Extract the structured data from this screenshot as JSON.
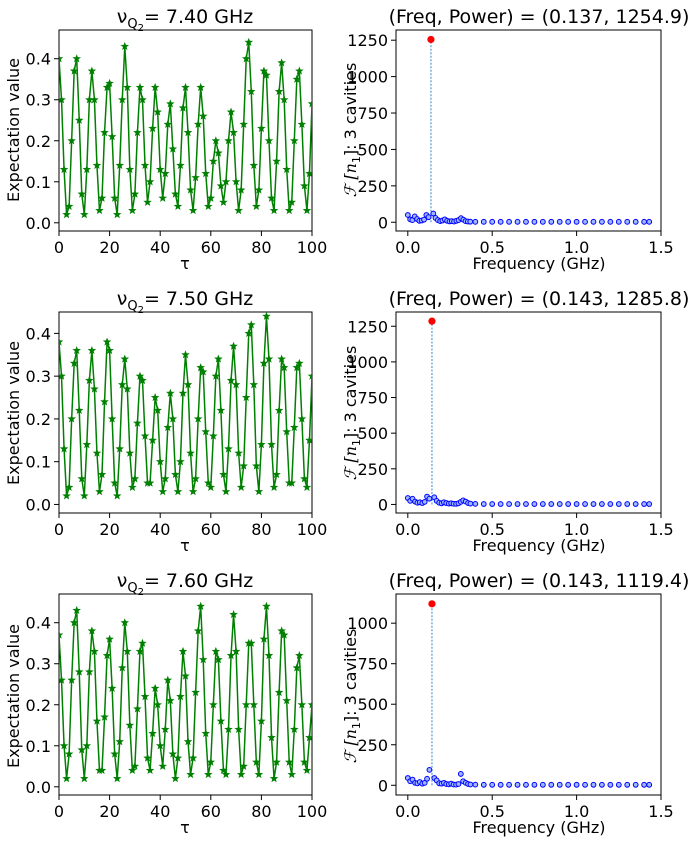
{
  "chart_data": [
    {
      "type": "line",
      "title_prefix": "ν",
      "title_sub": "Q",
      "title_subsub": "2",
      "title_value": "= 7.40 GHz",
      "xlabel": "τ",
      "ylabel": "Expectation value",
      "xlim": [
        0,
        100
      ],
      "ylim": [
        -0.02,
        0.47
      ],
      "xticks": [
        "0",
        "20",
        "40",
        "60",
        "80",
        "100"
      ],
      "yticks": [
        "0.0",
        "0.1",
        "0.2",
        "0.3",
        "0.4"
      ],
      "color": "#008000",
      "marker": "star",
      "x": [
        0,
        1,
        2,
        3,
        4,
        5,
        6,
        7,
        8,
        9,
        10,
        11,
        12,
        13,
        14,
        15,
        16,
        17,
        18,
        19,
        20,
        21,
        22,
        23,
        24,
        25,
        26,
        27,
        28,
        29,
        30,
        31,
        32,
        33,
        34,
        35,
        36,
        37,
        38,
        39,
        40,
        41,
        42,
        43,
        44,
        45,
        46,
        47,
        48,
        49,
        50,
        51,
        52,
        53,
        54,
        55,
        56,
        57,
        58,
        59,
        60,
        61,
        62,
        63,
        64,
        65,
        66,
        67,
        68,
        69,
        70,
        71,
        72,
        73,
        74,
        75,
        76,
        77,
        78,
        79,
        80,
        81,
        82,
        83,
        84,
        85,
        86,
        87,
        88,
        89,
        90,
        91,
        92,
        93,
        94,
        95,
        96,
        97,
        98,
        99,
        100
      ],
      "y": [
        0.4,
        0.3,
        0.13,
        0.02,
        0.04,
        0.2,
        0.37,
        0.4,
        0.25,
        0.07,
        0.02,
        0.13,
        0.3,
        0.37,
        0.3,
        0.14,
        0.03,
        0.06,
        0.22,
        0.33,
        0.34,
        0.21,
        0.06,
        0.02,
        0.14,
        0.3,
        0.43,
        0.33,
        0.13,
        0.03,
        0.07,
        0.22,
        0.33,
        0.3,
        0.14,
        0.05,
        0.1,
        0.23,
        0.33,
        0.27,
        0.13,
        0.06,
        0.12,
        0.24,
        0.29,
        0.18,
        0.07,
        0.04,
        0.14,
        0.28,
        0.33,
        0.22,
        0.08,
        0.03,
        0.11,
        0.24,
        0.33,
        0.26,
        0.12,
        0.04,
        0.06,
        0.15,
        0.2,
        0.17,
        0.09,
        0.05,
        0.1,
        0.2,
        0.27,
        0.22,
        0.1,
        0.03,
        0.08,
        0.24,
        0.4,
        0.44,
        0.32,
        0.14,
        0.04,
        0.08,
        0.23,
        0.37,
        0.36,
        0.2,
        0.06,
        0.03,
        0.15,
        0.32,
        0.39,
        0.3,
        0.13,
        0.03,
        0.05,
        0.2,
        0.35,
        0.37,
        0.24,
        0.09,
        0.03,
        0.12,
        0.29
      ]
    },
    {
      "type": "scatter",
      "title": "(Freq, Power) = (0.137, 1254.9)",
      "xlabel": "Frequency (GHz)",
      "ylabel_tex": "ℱ [n",
      "ylabel_sub": "1",
      "ylabel_rest": "]:  3 cavities",
      "xlim": [
        -0.07,
        1.5
      ],
      "ylim": [
        -60,
        1320
      ],
      "xticks": [
        "0.0",
        "0.5",
        "1.0",
        "1.5"
      ],
      "yticks": [
        "0",
        "250",
        "500",
        "750",
        "1000",
        "1250"
      ],
      "peak": {
        "x": 0.137,
        "y": 1254.9
      },
      "x": [
        0.0,
        0.014,
        0.027,
        0.041,
        0.055,
        0.068,
        0.082,
        0.096,
        0.11,
        0.123,
        0.137,
        0.151,
        0.164,
        0.178,
        0.192,
        0.205,
        0.219,
        0.233,
        0.247,
        0.26,
        0.274,
        0.288,
        0.301,
        0.315,
        0.329,
        0.342,
        0.356,
        0.37,
        0.4,
        0.45,
        0.5,
        0.55,
        0.6,
        0.65,
        0.7,
        0.75,
        0.8,
        0.85,
        0.9,
        0.95,
        1.0,
        1.05,
        1.1,
        1.15,
        1.2,
        1.25,
        1.3,
        1.35,
        1.4,
        1.43
      ],
      "y": [
        50,
        20,
        15,
        40,
        22,
        10,
        12,
        18,
        50,
        35,
        1254.9,
        60,
        30,
        15,
        8,
        12,
        20,
        10,
        6,
        8,
        5,
        10,
        15,
        28,
        18,
        8,
        5,
        4,
        3,
        3,
        3,
        3,
        3,
        3,
        3,
        3,
        3,
        3,
        3,
        3,
        3,
        3,
        3,
        3,
        3,
        3,
        3,
        3,
        3,
        3
      ]
    },
    {
      "type": "line",
      "title_prefix": "ν",
      "title_sub": "Q",
      "title_subsub": "2",
      "title_value": "= 7.50 GHz",
      "xlabel": "τ",
      "ylabel": "Expectation value",
      "xlim": [
        0,
        100
      ],
      "ylim": [
        -0.02,
        0.45
      ],
      "xticks": [
        "0",
        "20",
        "40",
        "60",
        "80",
        "100"
      ],
      "yticks": [
        "0.0",
        "0.1",
        "0.2",
        "0.3",
        "0.4"
      ],
      "color": "#008000",
      "marker": "star",
      "x": [
        0,
        1,
        2,
        3,
        4,
        5,
        6,
        7,
        8,
        9,
        10,
        11,
        12,
        13,
        14,
        15,
        16,
        17,
        18,
        19,
        20,
        21,
        22,
        23,
        24,
        25,
        26,
        27,
        28,
        29,
        30,
        31,
        32,
        33,
        34,
        35,
        36,
        37,
        38,
        39,
        40,
        41,
        42,
        43,
        44,
        45,
        46,
        47,
        48,
        49,
        50,
        51,
        52,
        53,
        54,
        55,
        56,
        57,
        58,
        59,
        60,
        61,
        62,
        63,
        64,
        65,
        66,
        67,
        68,
        69,
        70,
        71,
        72,
        73,
        74,
        75,
        76,
        77,
        78,
        79,
        80,
        81,
        82,
        83,
        84,
        85,
        86,
        87,
        88,
        89,
        90,
        91,
        92,
        93,
        94,
        95,
        96,
        97,
        98,
        99,
        100
      ],
      "y": [
        0.38,
        0.3,
        0.13,
        0.02,
        0.04,
        0.2,
        0.33,
        0.36,
        0.22,
        0.06,
        0.02,
        0.14,
        0.29,
        0.36,
        0.27,
        0.12,
        0.03,
        0.07,
        0.24,
        0.38,
        0.36,
        0.2,
        0.05,
        0.02,
        0.13,
        0.28,
        0.34,
        0.27,
        0.12,
        0.04,
        0.06,
        0.19,
        0.3,
        0.29,
        0.16,
        0.05,
        0.05,
        0.15,
        0.25,
        0.22,
        0.1,
        0.03,
        0.06,
        0.18,
        0.26,
        0.2,
        0.07,
        0.03,
        0.1,
        0.26,
        0.35,
        0.28,
        0.12,
        0.03,
        0.06,
        0.2,
        0.32,
        0.31,
        0.17,
        0.05,
        0.04,
        0.16,
        0.3,
        0.34,
        0.22,
        0.07,
        0.03,
        0.13,
        0.29,
        0.37,
        0.28,
        0.12,
        0.04,
        0.09,
        0.25,
        0.4,
        0.42,
        0.28,
        0.09,
        0.03,
        0.14,
        0.33,
        0.44,
        0.34,
        0.14,
        0.04,
        0.07,
        0.22,
        0.34,
        0.32,
        0.17,
        0.05,
        0.05,
        0.18,
        0.32,
        0.33,
        0.2,
        0.06,
        0.04,
        0.15,
        0.3
      ]
    },
    {
      "type": "scatter",
      "title": "(Freq, Power) = (0.143, 1285.8)",
      "xlabel": "Frequency (GHz)",
      "ylabel_tex": "ℱ [n",
      "ylabel_sub": "1",
      "ylabel_rest": "]:  3 cavities",
      "xlim": [
        -0.07,
        1.5
      ],
      "ylim": [
        -60,
        1350
      ],
      "xticks": [
        "0.0",
        "0.5",
        "1.0",
        "1.5"
      ],
      "yticks": [
        "0",
        "250",
        "500",
        "750",
        "1000",
        "1250"
      ],
      "peak": {
        "x": 0.143,
        "y": 1285.8
      },
      "x": [
        0.0,
        0.014,
        0.028,
        0.043,
        0.057,
        0.071,
        0.086,
        0.1,
        0.114,
        0.128,
        0.143,
        0.157,
        0.171,
        0.186,
        0.2,
        0.214,
        0.228,
        0.243,
        0.257,
        0.271,
        0.286,
        0.3,
        0.314,
        0.328,
        0.343,
        0.357,
        0.371,
        0.4,
        0.45,
        0.5,
        0.55,
        0.6,
        0.65,
        0.7,
        0.75,
        0.8,
        0.85,
        0.9,
        0.95,
        1.0,
        1.05,
        1.1,
        1.15,
        1.2,
        1.25,
        1.3,
        1.35,
        1.4,
        1.43
      ],
      "y": [
        45,
        25,
        40,
        20,
        12,
        15,
        10,
        18,
        55,
        40,
        1285.8,
        50,
        25,
        12,
        8,
        15,
        10,
        6,
        8,
        5,
        4,
        8,
        18,
        28,
        20,
        10,
        6,
        4,
        3,
        3,
        3,
        3,
        3,
        3,
        3,
        3,
        3,
        3,
        3,
        3,
        3,
        3,
        3,
        3,
        3,
        3,
        3,
        3,
        3
      ]
    },
    {
      "type": "line",
      "title_prefix": "ν",
      "title_sub": "Q",
      "title_subsub": "2",
      "title_value": "= 7.60 GHz",
      "xlabel": "τ",
      "ylabel": "Expectation value",
      "xlim": [
        0,
        100
      ],
      "ylim": [
        -0.02,
        0.47
      ],
      "xticks": [
        "0",
        "20",
        "40",
        "60",
        "80",
        "100"
      ],
      "yticks": [
        "0.0",
        "0.1",
        "0.2",
        "0.3",
        "0.4"
      ],
      "color": "#008000",
      "marker": "star",
      "x": [
        0,
        1,
        2,
        3,
        4,
        5,
        6,
        7,
        8,
        9,
        10,
        11,
        12,
        13,
        14,
        15,
        16,
        17,
        18,
        19,
        20,
        21,
        22,
        23,
        24,
        25,
        26,
        27,
        28,
        29,
        30,
        31,
        32,
        33,
        34,
        35,
        36,
        37,
        38,
        39,
        40,
        41,
        42,
        43,
        44,
        45,
        46,
        47,
        48,
        49,
        50,
        51,
        52,
        53,
        54,
        55,
        56,
        57,
        58,
        59,
        60,
        61,
        62,
        63,
        64,
        65,
        66,
        67,
        68,
        69,
        70,
        71,
        72,
        73,
        74,
        75,
        76,
        77,
        78,
        79,
        80,
        81,
        82,
        83,
        84,
        85,
        86,
        87,
        88,
        89,
        90,
        91,
        92,
        93,
        94,
        95,
        96,
        97,
        98,
        99,
        100
      ],
      "y": [
        0.37,
        0.26,
        0.1,
        0.02,
        0.08,
        0.26,
        0.4,
        0.43,
        0.28,
        0.09,
        0.02,
        0.1,
        0.28,
        0.38,
        0.33,
        0.16,
        0.04,
        0.04,
        0.17,
        0.32,
        0.36,
        0.24,
        0.08,
        0.02,
        0.11,
        0.29,
        0.4,
        0.33,
        0.15,
        0.04,
        0.05,
        0.19,
        0.33,
        0.35,
        0.22,
        0.07,
        0.04,
        0.13,
        0.24,
        0.2,
        0.1,
        0.05,
        0.14,
        0.26,
        0.21,
        0.08,
        0.02,
        0.07,
        0.22,
        0.33,
        0.27,
        0.11,
        0.03,
        0.07,
        0.23,
        0.38,
        0.44,
        0.31,
        0.13,
        0.03,
        0.06,
        0.2,
        0.33,
        0.31,
        0.16,
        0.04,
        0.03,
        0.14,
        0.32,
        0.42,
        0.33,
        0.14,
        0.03,
        0.05,
        0.2,
        0.35,
        0.35,
        0.2,
        0.06,
        0.03,
        0.16,
        0.36,
        0.44,
        0.32,
        0.12,
        0.02,
        0.06,
        0.23,
        0.38,
        0.37,
        0.21,
        0.06,
        0.03,
        0.14,
        0.29,
        0.32,
        0.2,
        0.06,
        0.04,
        0.12,
        0.2
      ]
    },
    {
      "type": "scatter",
      "title": "(Freq, Power) = (0.143, 1119.4)",
      "xlabel": "Frequency (GHz)",
      "ylabel_tex": "ℱ [n",
      "ylabel_sub": "1",
      "ylabel_rest": "]:  3 cavities",
      "xlim": [
        -0.07,
        1.5
      ],
      "ylim": [
        -60,
        1180
      ],
      "xticks": [
        "0.0",
        "0.5",
        "1.0",
        "1.5"
      ],
      "yticks": [
        "0",
        "250",
        "500",
        "750",
        "1000"
      ],
      "peak": {
        "x": 0.143,
        "y": 1119.4
      },
      "x": [
        0.0,
        0.014,
        0.028,
        0.043,
        0.057,
        0.071,
        0.086,
        0.1,
        0.114,
        0.128,
        0.143,
        0.157,
        0.171,
        0.186,
        0.2,
        0.214,
        0.228,
        0.243,
        0.257,
        0.271,
        0.286,
        0.3,
        0.314,
        0.328,
        0.343,
        0.357,
        0.371,
        0.4,
        0.45,
        0.5,
        0.55,
        0.6,
        0.65,
        0.7,
        0.75,
        0.8,
        0.85,
        0.9,
        0.95,
        1.0,
        1.05,
        1.1,
        1.15,
        1.2,
        1.25,
        1.3,
        1.35,
        1.4,
        1.43
      ],
      "y": [
        45,
        25,
        35,
        15,
        12,
        20,
        10,
        15,
        40,
        95,
        1119.4,
        45,
        30,
        12,
        10,
        15,
        8,
        6,
        10,
        5,
        4,
        8,
        70,
        25,
        15,
        8,
        5,
        4,
        3,
        3,
        3,
        3,
        3,
        3,
        3,
        3,
        3,
        3,
        3,
        3,
        3,
        3,
        3,
        3,
        3,
        3,
        3,
        3,
        3
      ]
    }
  ]
}
